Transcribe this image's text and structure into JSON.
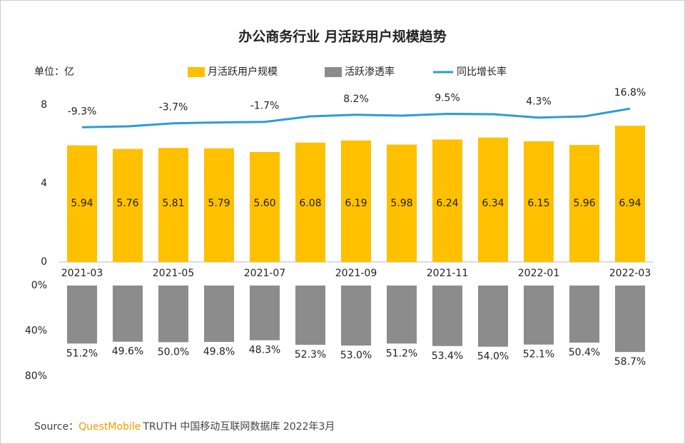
{
  "chart_data": [
    {
      "type": "bar",
      "title": "办公商务行业 月活跃用户规模趋势",
      "y_label": "单位：亿",
      "categories": [
        "2021-03",
        null,
        "2021-05",
        null,
        "2021-07",
        null,
        "2021-09",
        null,
        "2021-11",
        null,
        "2022-01",
        null,
        "2022-03"
      ],
      "ylim": [
        0,
        8
      ],
      "yticks": [
        0,
        4,
        8
      ],
      "y2lim": [
        -198,
        22
      ],
      "series": [
        {
          "name": "月活跃用户规模",
          "color": "#FFC000",
          "values": [
            5.94,
            5.76,
            5.81,
            5.79,
            5.6,
            6.08,
            6.19,
            5.98,
            6.24,
            6.34,
            6.15,
            5.96,
            6.94
          ],
          "value_labels": [
            "5.94",
            "5.76",
            "5.81",
            "5.79",
            "5.60",
            "6.08",
            "6.19",
            "5.98",
            "6.24",
            "6.34",
            "6.15",
            "5.96",
            "6.94"
          ]
        },
        {
          "name": "同比增长率",
          "color": "#2E9BD6",
          "axis": "y2",
          "values": [
            -9.3,
            -8,
            -3.7,
            -2.5,
            -1.7,
            6,
            8.2,
            7,
            9.5,
            9,
            4.3,
            6,
            16.8
          ],
          "value_labels": [
            "-9.3%",
            null,
            "-3.7%",
            null,
            "-1.7%",
            null,
            "8.2%",
            null,
            "9.5%",
            null,
            "4.3%",
            null,
            "16.8%"
          ]
        }
      ]
    },
    {
      "type": "bar",
      "y_inverted": true,
      "ylim": [
        0,
        80
      ],
      "yticks": [
        {
          "value": 0,
          "label": "0%"
        },
        {
          "value": 40,
          "label": "40%"
        },
        {
          "value": 80,
          "label": "80%"
        }
      ],
      "series": [
        {
          "name": "活跃渗透率",
          "color": "#8C8C8C",
          "values": [
            51.2,
            49.6,
            50.0,
            49.8,
            48.3,
            52.3,
            53.0,
            51.2,
            53.4,
            54.0,
            52.1,
            50.4,
            58.7
          ],
          "value_labels": [
            "51.2%",
            "49.6%",
            "50.0%",
            "49.8%",
            "48.3%",
            "52.3%",
            "53.0%",
            "51.2%",
            "53.4%",
            "54.0%",
            "52.1%",
            "50.4%",
            "58.7%"
          ]
        }
      ]
    }
  ],
  "source": {
    "label": "Source：",
    "brand": "QuestMobile",
    "text": "TRUTH 中国移动互联网数据库 2022年3月"
  }
}
